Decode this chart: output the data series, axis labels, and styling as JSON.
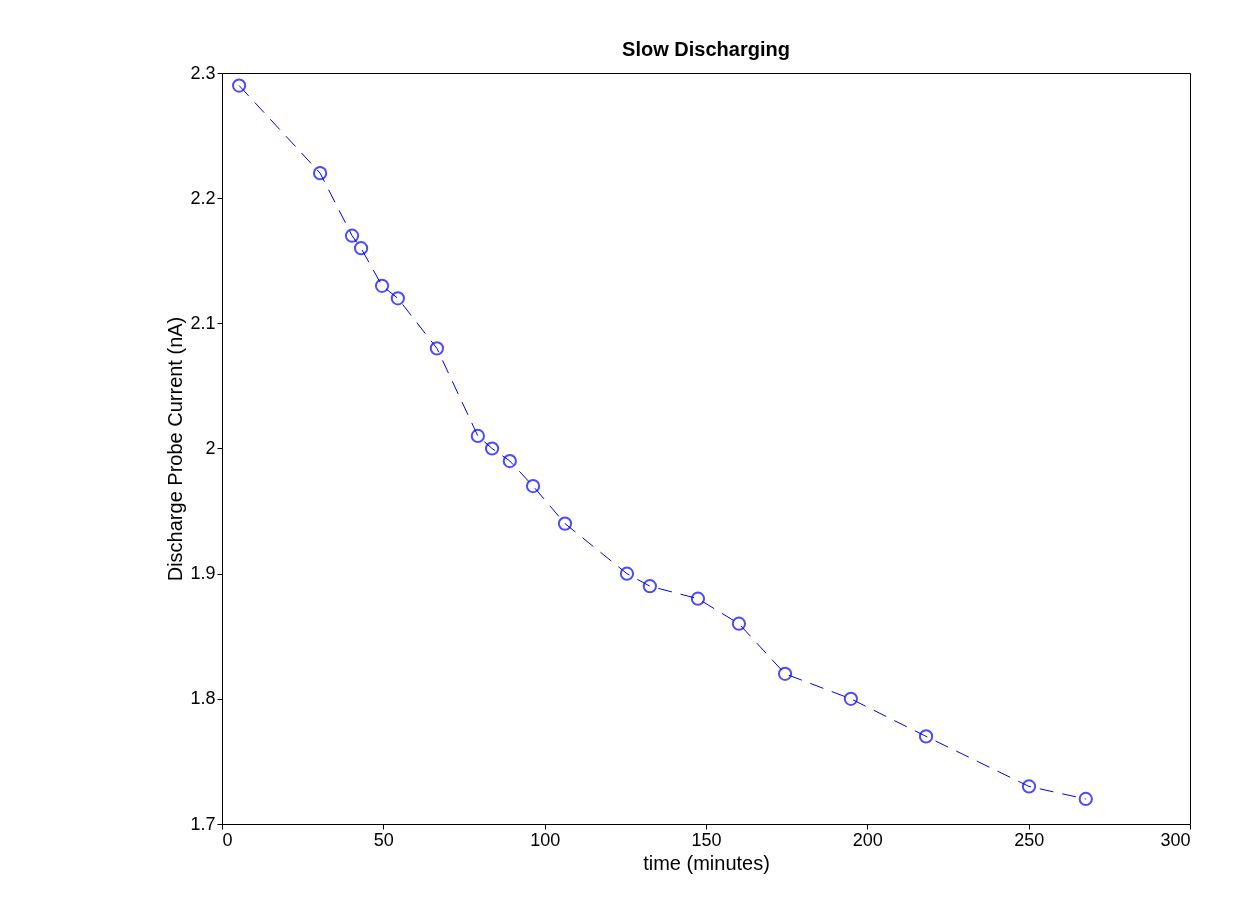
{
  "chart_data": {
    "type": "line",
    "title": "Slow Discharging",
    "xlabel": "time (minutes)",
    "ylabel": "Discharge Probe Current (nA)",
    "x": [
      5.3,
      30.4,
      40.3,
      43.1,
      49.6,
      54.5,
      66.6,
      79.3,
      83.7,
      89.2,
      96.4,
      106.3,
      125.5,
      132.6,
      147.5,
      160.2,
      174.5,
      194.9,
      218.2,
      250.1,
      267.7
    ],
    "series": [
      {
        "color": "#0000ff",
        "values": [
          2.29,
          2.22,
          2.17,
          2.16,
          2.13,
          2.12,
          2.08,
          2.01,
          2.0,
          1.99,
          1.97,
          1.94,
          1.9,
          1.89,
          1.88,
          1.86,
          1.82,
          1.8,
          1.77,
          1.73,
          1.72
        ]
      }
    ],
    "xlim": [
      0,
      300
    ],
    "xticks": [
      0,
      50,
      100,
      150,
      200,
      250,
      300
    ],
    "ylim": [
      1.7,
      2.3
    ],
    "yticks": [
      1.7,
      1.8,
      1.9,
      2,
      2.1,
      2.2,
      2.3
    ],
    "grid": false,
    "marker": "circle",
    "line_style": "dashed"
  }
}
